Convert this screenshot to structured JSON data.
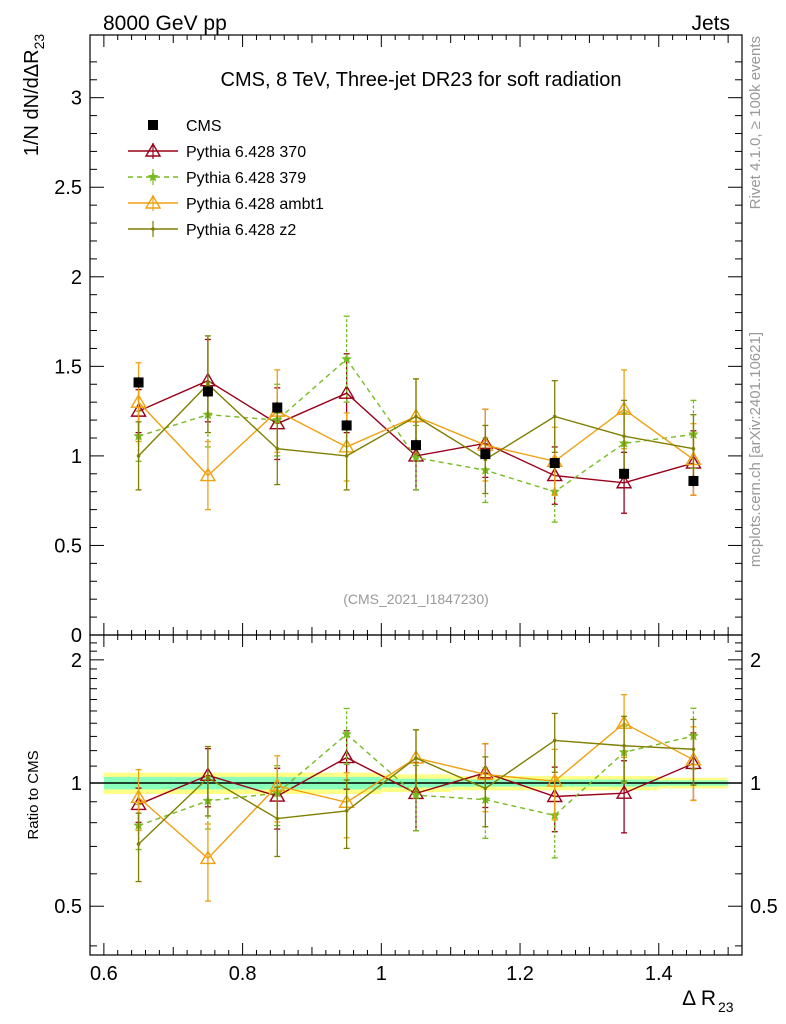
{
  "header": {
    "left_label": "8000 GeV pp",
    "right_label": "Jets"
  },
  "side_labels": {
    "rivet": "Rivet 4.1.0, ≥ 100k events",
    "mcplots": "mcplots.cern.ch [arXiv:2401.10621]"
  },
  "analysis_id": "(CMS_2021_I1847230)",
  "ratio_ylabel": "Ratio to CMS",
  "colors": {
    "data": "#000000",
    "p370": "#99001a",
    "p379": "#77bb22",
    "ambt1": "#f0a010",
    "z2": "#7f7f00",
    "band_outer": "#ffff88",
    "band_inner": "#88ffbb"
  },
  "chart_data": {
    "type": "scatter",
    "title": "CMS, 8 TeV, Three-jet DR23 for soft radiation",
    "xlabel": "Δ R",
    "xlabel_sub": "23",
    "ylabel": "1/N dN/dΔR23",
    "xlim": [
      0.58,
      1.52
    ],
    "ylim": [
      0,
      3.35
    ],
    "ratio_ylim": [
      0.38,
      2.3
    ],
    "x_ticks": [
      "0.6",
      "0.8",
      "1",
      "1.2",
      "1.4"
    ],
    "y_ticks": [
      "0",
      "0.5",
      "1",
      "1.5",
      "2",
      "2.5",
      "3"
    ],
    "ratio_ticks": [
      "0.5",
      "1",
      "2"
    ],
    "x": [
      0.65,
      0.75,
      0.85,
      0.95,
      1.05,
      1.15,
      1.25,
      1.35,
      1.45
    ],
    "series": [
      {
        "name": "CMS",
        "key": "data",
        "style": "data",
        "values": [
          1.41,
          1.36,
          1.27,
          1.17,
          1.06,
          1.01,
          0.96,
          0.9,
          0.86
        ],
        "errors": [
          0.03,
          0.03,
          0.03,
          0.03,
          0.03,
          0.03,
          0.03,
          0.03,
          0.03
        ]
      },
      {
        "name": "Pythia 6.428 370",
        "key": "p370",
        "style": "triangle",
        "values": [
          1.25,
          1.42,
          1.18,
          1.35,
          1.0,
          1.07,
          0.89,
          0.85,
          0.96
        ],
        "errors": [
          0.12,
          0.23,
          0.2,
          0.22,
          0.19,
          0.19,
          0.16,
          0.17,
          0.18
        ]
      },
      {
        "name": "Pythia 6.428 379",
        "key": "p379",
        "style": "star",
        "values": [
          1.11,
          1.23,
          1.2,
          1.54,
          0.99,
          0.92,
          0.8,
          1.07,
          1.12
        ],
        "errors": [
          0.14,
          0.18,
          0.2,
          0.24,
          0.18,
          0.18,
          0.17,
          0.17,
          0.19
        ]
      },
      {
        "name": "Pythia 6.428 ambt1",
        "key": "ambt1",
        "style": "triangle",
        "values": [
          1.3,
          0.89,
          1.25,
          1.05,
          1.22,
          1.06,
          0.97,
          1.26,
          0.98
        ],
        "errors": [
          0.22,
          0.19,
          0.23,
          0.19,
          0.21,
          0.2,
          0.19,
          0.22,
          0.2
        ]
      },
      {
        "name": "Pythia 6.428 z2",
        "key": "z2",
        "style": "dot",
        "values": [
          1.0,
          1.4,
          1.04,
          1.0,
          1.22,
          0.98,
          1.22,
          1.11,
          1.04
        ],
        "errors": [
          0.19,
          0.27,
          0.2,
          0.19,
          0.21,
          0.19,
          0.2,
          0.2,
          0.19
        ]
      }
    ],
    "ratio_band": {
      "x_edges": [
        0.6,
        0.7,
        0.8,
        0.9,
        1.0,
        1.1,
        1.2,
        1.3,
        1.4,
        1.5
      ],
      "outer": [
        0.06,
        0.06,
        0.06,
        0.06,
        0.05,
        0.04,
        0.04,
        0.04,
        0.03
      ],
      "inner": [
        0.035,
        0.035,
        0.035,
        0.035,
        0.025,
        0.02,
        0.02,
        0.02,
        0.015
      ]
    }
  }
}
